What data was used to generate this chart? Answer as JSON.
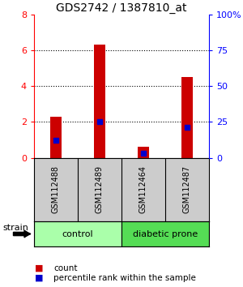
{
  "title": "GDS2742 / 1387810_at",
  "samples": [
    "GSM112488",
    "GSM112489",
    "GSM112464",
    "GSM112487"
  ],
  "red_values": [
    2.3,
    6.3,
    0.6,
    4.5
  ],
  "blue_values": [
    1.0,
    2.0,
    0.28,
    1.7
  ],
  "groups": [
    {
      "label": "control",
      "indices": [
        0,
        1
      ],
      "color": "#aaffaa"
    },
    {
      "label": "diabetic prone",
      "indices": [
        2,
        3
      ],
      "color": "#55dd55"
    }
  ],
  "left_ylim": [
    0,
    8
  ],
  "right_ylim": [
    0,
    100
  ],
  "left_yticks": [
    0,
    2,
    4,
    6,
    8
  ],
  "right_yticks": [
    0,
    25,
    50,
    75,
    100
  ],
  "left_yticklabels": [
    "0",
    "2",
    "4",
    "6",
    "8"
  ],
  "right_yticklabels": [
    "0",
    "25",
    "50",
    "75",
    "100%"
  ],
  "left_tick_color": "red",
  "right_tick_color": "blue",
  "bar_color": "#cc0000",
  "marker_color": "#0000cc",
  "grid_color": "black",
  "bg_color": "white",
  "sample_box_color": "#cccccc",
  "strain_label": "strain",
  "legend_items": [
    "count",
    "percentile rank within the sample"
  ]
}
